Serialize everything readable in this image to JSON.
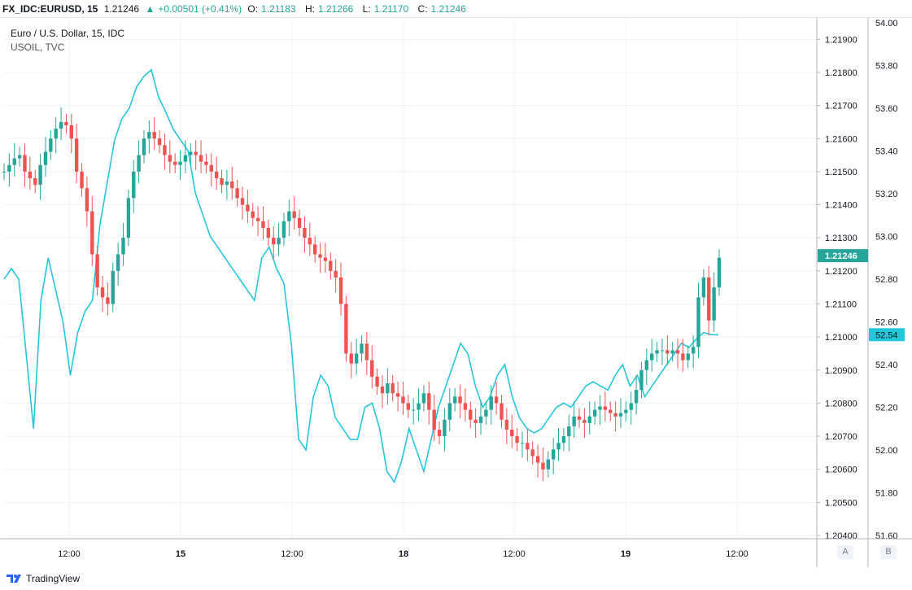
{
  "header": {
    "symbol": "FX_IDC:EURUSD, 15",
    "last": "1.21246",
    "arrow": "▲",
    "change": "+0.00501 (+0.41%)",
    "open_label": "O:",
    "open": "1.21183",
    "high_label": "H:",
    "high": "1.21266",
    "low_label": "L:",
    "low": "1.21170",
    "close_label": "C:",
    "close": "1.21246"
  },
  "legend": {
    "main": "Euro / U.S. Dollar, 15, IDC",
    "sub": "USOIL, TVC"
  },
  "footer": {
    "brand": "TradingView"
  },
  "axis_buttons": {
    "left": "A",
    "right": "B"
  },
  "colors": {
    "up": "#26a69a",
    "down": "#ef5350",
    "oil": "#26c6da",
    "grid": "#f0f3fa",
    "axis_text": "#131722"
  },
  "chart_data": {
    "type": "line",
    "title": "Euro / U.S. Dollar, 15, IDC",
    "subtitle": "USOIL, TVC",
    "xlabel": "",
    "ylabel": "",
    "x_ticks": [
      "12:00",
      "15",
      "12:00",
      "18",
      "12:00",
      "19",
      "12:00"
    ],
    "y_ticks_eurusd": [
      "1.21900",
      "1.21800",
      "1.21700",
      "1.21600",
      "1.21500",
      "1.21400",
      "1.21300",
      "1.21200",
      "1.21100",
      "1.21000",
      "1.20900",
      "1.20800",
      "1.20700",
      "1.20600",
      "1.20500",
      "1.20400"
    ],
    "y_ticks_usoil": [
      "54.00",
      "53.80",
      "53.60",
      "53.40",
      "53.20",
      "53.00",
      "52.80",
      "52.60",
      "52.40",
      "52.20",
      "52.00",
      "51.80",
      "51.60"
    ],
    "ylim_eurusd": [
      1.204,
      1.2195
    ],
    "ylim_usoil": [
      51.6,
      54.0
    ],
    "grid": true,
    "last_value_eurusd": "1.21246",
    "last_value_usoil": "52.54",
    "series": [
      {
        "name": "EURUSD",
        "style": "candlestick",
        "axis": "right-inner",
        "values": [
          1.215,
          1.2152,
          1.2154,
          1.2155,
          1.215,
          1.2148,
          1.2146,
          1.2152,
          1.2156,
          1.216,
          1.2163,
          1.2165,
          1.2164,
          1.216,
          1.215,
          1.2145,
          1.2138,
          1.2125,
          1.2115,
          1.2112,
          1.211,
          1.212,
          1.2125,
          1.213,
          1.2142,
          1.215,
          1.2155,
          1.216,
          1.2162,
          1.216,
          1.2158,
          1.2155,
          1.2153,
          1.2152,
          1.2153,
          1.2155,
          1.2156,
          1.2155,
          1.2153,
          1.2152,
          1.215,
          1.2148,
          1.2146,
          1.2147,
          1.2145,
          1.2142,
          1.214,
          1.2138,
          1.2136,
          1.2135,
          1.2133,
          1.213,
          1.2128,
          1.213,
          1.2135,
          1.2138,
          1.2136,
          1.2133,
          1.213,
          1.2128,
          1.2125,
          1.2124,
          1.2123,
          1.212,
          1.2118,
          1.211,
          1.2095,
          1.2092,
          1.2095,
          1.2098,
          1.2093,
          1.2088,
          1.2085,
          1.2083,
          1.2086,
          1.2083,
          1.2082,
          1.208,
          1.2078,
          1.2078,
          1.208,
          1.2083,
          1.2078,
          1.2072,
          1.207,
          1.2075,
          1.208,
          1.2082,
          1.208,
          1.2078,
          1.2075,
          1.2074,
          1.2076,
          1.2078,
          1.2082,
          1.208,
          1.2075,
          1.2072,
          1.207,
          1.2068,
          1.2068,
          1.2066,
          1.2064,
          1.2062,
          1.206,
          1.2063,
          1.2066,
          1.2068,
          1.207,
          1.2073,
          1.2076,
          1.2075,
          1.2074,
          1.2076,
          1.2078,
          1.2079,
          1.2078,
          1.2077,
          1.2076,
          1.2077,
          1.2078,
          1.208,
          1.2084,
          1.209,
          1.2093,
          1.2095,
          1.2096,
          1.2096,
          1.2095,
          1.2096,
          1.2095,
          1.2093,
          1.2095,
          1.2097,
          1.2112,
          1.2118,
          1.2105,
          1.2115,
          1.2124
        ]
      },
      {
        "name": "USOIL",
        "style": "line",
        "axis": "right-outer",
        "values": [
          52.8,
          52.85,
          52.8,
          52.45,
          52.1,
          52.7,
          52.9,
          52.75,
          52.6,
          52.35,
          52.55,
          52.65,
          52.7,
          53.05,
          53.25,
          53.45,
          53.55,
          53.6,
          53.7,
          53.75,
          53.78,
          53.65,
          53.58,
          53.5,
          53.45,
          53.4,
          53.2,
          53.1,
          53.0,
          52.95,
          52.9,
          52.85,
          52.8,
          52.75,
          52.7,
          52.9,
          52.95,
          52.85,
          52.78,
          52.5,
          52.05,
          52.0,
          52.25,
          52.35,
          52.3,
          52.15,
          52.1,
          52.05,
          52.05,
          52.2,
          52.22,
          52.1,
          51.9,
          51.85,
          51.95,
          52.1,
          52.0,
          51.9,
          52.05,
          52.2,
          52.3,
          52.4,
          52.5,
          52.45,
          52.3,
          52.2,
          52.25,
          52.35,
          52.4,
          52.25,
          52.15,
          52.1,
          52.08,
          52.1,
          52.15,
          52.2,
          52.22,
          52.2,
          52.25,
          52.3,
          52.32,
          52.3,
          52.28,
          52.35,
          52.4,
          52.3,
          52.35,
          52.25,
          52.3,
          52.35,
          52.4,
          52.45,
          52.5,
          52.48,
          52.52,
          52.55,
          52.54,
          52.54
        ]
      }
    ]
  }
}
